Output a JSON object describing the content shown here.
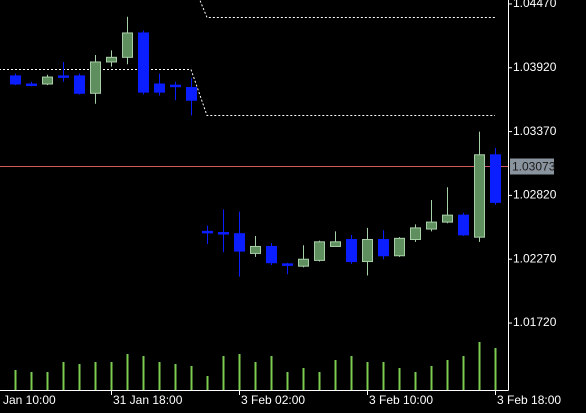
{
  "chart_data": {
    "type": "candlestick",
    "categories": [
      "Jan 10:00",
      null,
      null,
      null,
      null,
      null,
      null,
      null,
      "31 Jan 18:00",
      null,
      null,
      null,
      null,
      null,
      null,
      null,
      "3 Feb 02:00",
      null,
      null,
      null,
      null,
      null,
      null,
      null,
      "3 Feb 10:00",
      null,
      null,
      null,
      null,
      null,
      null,
      null,
      "3 Feb 18:00"
    ],
    "open": [
      null,
      null,
      1.0385,
      1.0378,
      1.0378,
      1.0385,
      1.0385,
      1.037,
      1.0397,
      1.0401,
      1.0422,
      1.0378,
      1.0377,
      1.0375,
      1.0251,
      1.025,
      1.0249,
      1.0232,
      1.0238,
      1.0223,
      1.0221,
      1.0226,
      1.0238,
      1.0244,
      1.0225,
      1.0244,
      1.023,
      1.0244,
      1.0253,
      1.0259,
      1.0265,
      1.0246,
      1.0317
    ],
    "high": [
      null,
      null,
      1.0387,
      1.038,
      1.0386,
      1.0397,
      1.0387,
      1.0403,
      1.0407,
      1.0436,
      1.0424,
      1.0387,
      1.038,
      1.0383,
      1.0256,
      1.027,
      1.0268,
      1.0247,
      1.0241,
      1.0224,
      1.0239,
      1.0243,
      1.0251,
      1.0248,
      1.0254,
      1.0252,
      1.0246,
      1.0257,
      1.0278,
      1.0289,
      1.0267,
      1.0337,
      1.0323
    ],
    "low": [
      null,
      null,
      1.0377,
      1.0376,
      1.0377,
      1.038,
      1.0369,
      1.0361,
      1.0393,
      1.0395,
      1.0369,
      1.0368,
      1.0364,
      1.0351,
      1.024,
      1.0233,
      1.0212,
      1.0229,
      1.0222,
      1.0214,
      1.022,
      1.0225,
      1.0238,
      1.0223,
      1.0213,
      1.0227,
      1.0229,
      1.0242,
      1.0251,
      1.0258,
      1.0247,
      1.0242,
      1.0274
    ],
    "close": [
      null,
      null,
      1.0378,
      1.0377,
      1.0384,
      1.0384,
      1.037,
      1.0397,
      1.0401,
      1.0422,
      1.0371,
      1.0371,
      1.0376,
      1.0364,
      1.025,
      1.0249,
      1.0234,
      1.0238,
      1.0224,
      1.0222,
      1.0227,
      1.0242,
      1.0242,
      1.0225,
      1.0244,
      1.023,
      1.0245,
      1.0254,
      1.0259,
      1.0265,
      1.0248,
      1.0317,
      1.0276
    ],
    "volume": [
      null,
      null,
      20,
      18,
      18,
      28,
      26,
      28,
      28,
      36,
      34,
      28,
      26,
      24,
      14,
      34,
      36,
      28,
      34,
      18,
      22,
      18,
      30,
      34,
      28,
      28,
      22,
      18,
      24,
      30,
      34,
      48,
      42
    ],
    "volume_lim": [
      0,
      100
    ],
    "levels": [
      {
        "color": "#ffffff",
        "values": [
          null,
          null,
          null,
          null,
          null,
          null,
          null,
          null,
          null,
          null,
          null,
          null,
          null,
          1.0469,
          1.0436,
          1.0436,
          1.0436,
          1.0436,
          1.0436,
          1.0436,
          1.0436,
          1.0436,
          1.0436,
          1.0436,
          1.0436,
          1.0436,
          1.0436,
          1.0436,
          1.0436,
          1.0436,
          1.0436,
          1.0436,
          1.0436
        ]
      },
      {
        "color": "#ffffff",
        "values": [
          1.0391,
          1.0391,
          1.0391,
          1.0391,
          1.0391,
          1.0391,
          1.0391,
          1.0391,
          1.0391,
          1.0391,
          1.0391,
          1.0391,
          1.0391,
          1.0391,
          1.0351,
          1.0351,
          1.0351,
          1.0351,
          1.0351,
          1.0351,
          1.0351,
          1.0351,
          1.0351,
          1.0351,
          1.0351,
          1.0351,
          1.0351,
          1.0351,
          1.0351,
          1.0351,
          1.0351,
          1.0351,
          1.0351
        ]
      }
    ],
    "current_price": 1.03073,
    "current_price_color": "#d05a5a",
    "up_color": "#5f8f5f",
    "up_outline": "#a8d0a8",
    "down_color": "#0a1eff",
    "volume_color": "#7ccd4f",
    "ylim": [
      1.01143,
      1.04504
    ],
    "yticks": [
      {
        "value": 1.0447,
        "label": "1.04470"
      },
      {
        "value": 1.0392,
        "label": "1.03920"
      },
      {
        "value": 1.0337,
        "label": "1.03370"
      },
      {
        "value": 1.0282,
        "label": "1.02820"
      },
      {
        "value": 1.0227,
        "label": "1.02270"
      },
      {
        "value": 1.0172,
        "label": "1.01720"
      }
    ]
  }
}
